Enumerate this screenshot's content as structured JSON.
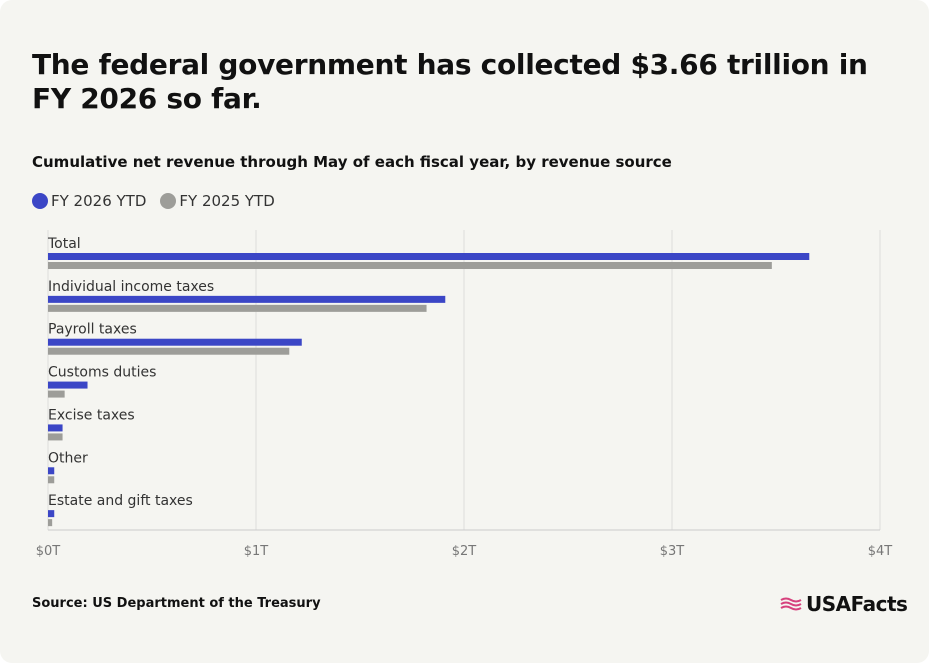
{
  "chart_data": {
    "type": "hbar",
    "title": "The federal government has collected $3.66 trillion in FY 2026 so far.",
    "subtitle": "Cumulative net revenue through May of each fiscal year, by revenue source",
    "categories": [
      "Total",
      "Individual income taxes",
      "Payroll taxes",
      "Customs duties",
      "Excise taxes",
      "Other",
      "Estate and gift taxes"
    ],
    "series": [
      {
        "name": "FY 2026 YTD",
        "color": "#3b46c6",
        "values": [
          3.66,
          1.91,
          1.22,
          0.19,
          0.07,
          0.03,
          0.03
        ]
      },
      {
        "name": "FY 2025 YTD",
        "color": "#9d9d99",
        "values": [
          3.48,
          1.82,
          1.16,
          0.08,
          0.07,
          0.03,
          0.02
        ]
      }
    ],
    "xlim": [
      0,
      4
    ],
    "xticks": [
      {
        "value": 0,
        "label": "$0T"
      },
      {
        "value": 1,
        "label": "$1T"
      },
      {
        "value": 2,
        "label": "$2T"
      },
      {
        "value": 3,
        "label": "$3T"
      },
      {
        "value": 4,
        "label": "$4T"
      }
    ],
    "grid": true,
    "source": "Source: US Department of the Treasury",
    "logo": "USAFacts"
  }
}
